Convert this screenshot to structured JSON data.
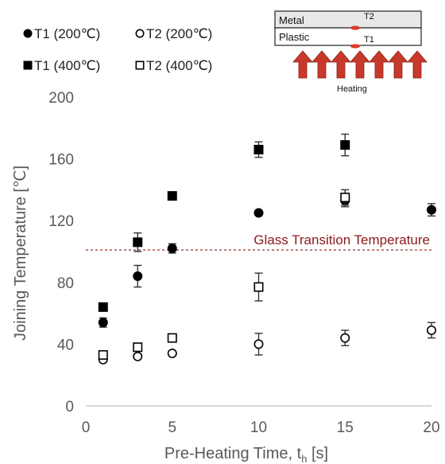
{
  "chart_data": {
    "type": "scatter",
    "xlabel": "Pre-Heating Time, t",
    "xlabel_sub": "h",
    "xlabel_unit": "[s]",
    "ylabel": "Joining Temperature [℃]",
    "xlim": [
      0,
      20
    ],
    "ylim": [
      0,
      200
    ],
    "x_ticks": [
      0,
      5,
      10,
      15,
      20
    ],
    "y_ticks": [
      0,
      40,
      80,
      120,
      160,
      200
    ],
    "grid": false,
    "legend_position": "top-left",
    "series": [
      {
        "name": "T1 (200℃)",
        "marker": "filled-circle",
        "points": [
          {
            "x": 1,
            "y": 54,
            "err": 3
          },
          {
            "x": 3,
            "y": 84,
            "err": 7
          },
          {
            "x": 5,
            "y": 102,
            "err": 3
          },
          {
            "x": 10,
            "y": 125,
            "err": 0
          },
          {
            "x": 15,
            "y": 133,
            "err": 4
          },
          {
            "x": 20,
            "y": 127,
            "err": 4
          }
        ]
      },
      {
        "name": "T2 (200℃)",
        "marker": "open-circle",
        "points": [
          {
            "x": 1,
            "y": 30,
            "err": 0
          },
          {
            "x": 3,
            "y": 32,
            "err": 0
          },
          {
            "x": 5,
            "y": 34,
            "err": 0
          },
          {
            "x": 10,
            "y": 40,
            "err": 7
          },
          {
            "x": 15,
            "y": 44,
            "err": 5
          },
          {
            "x": 20,
            "y": 49,
            "err": 5
          }
        ]
      },
      {
        "name": "T1 (400℃)",
        "marker": "filled-square",
        "points": [
          {
            "x": 1,
            "y": 64,
            "err": 0
          },
          {
            "x": 3,
            "y": 106,
            "err": 6
          },
          {
            "x": 5,
            "y": 136,
            "err": 0
          },
          {
            "x": 10,
            "y": 166,
            "err": 5
          },
          {
            "x": 15,
            "y": 169,
            "err": 7
          }
        ]
      },
      {
        "name": "T2 (400℃)",
        "marker": "open-square",
        "points": [
          {
            "x": 1,
            "y": 33,
            "err": 0
          },
          {
            "x": 3,
            "y": 38,
            "err": 0
          },
          {
            "x": 5,
            "y": 44,
            "err": 0
          },
          {
            "x": 10,
            "y": 77,
            "err": 9
          },
          {
            "x": 15,
            "y": 135,
            "err": 5
          }
        ]
      }
    ],
    "reference_line": {
      "y": 101,
      "label": "Glass Transition Temperature",
      "color": "#8b1a1a",
      "style": "dashed"
    },
    "colors": {
      "marker": "#000000",
      "axis": "#bfbfbf",
      "text": "#595959",
      "arrow": "#c0392b"
    }
  },
  "inset": {
    "metal_label": "Metal",
    "plastic_label": "Plastic",
    "t2_label": "T2",
    "t1_label": "T1",
    "heating_label": "Heating",
    "arrow_count": 7
  }
}
